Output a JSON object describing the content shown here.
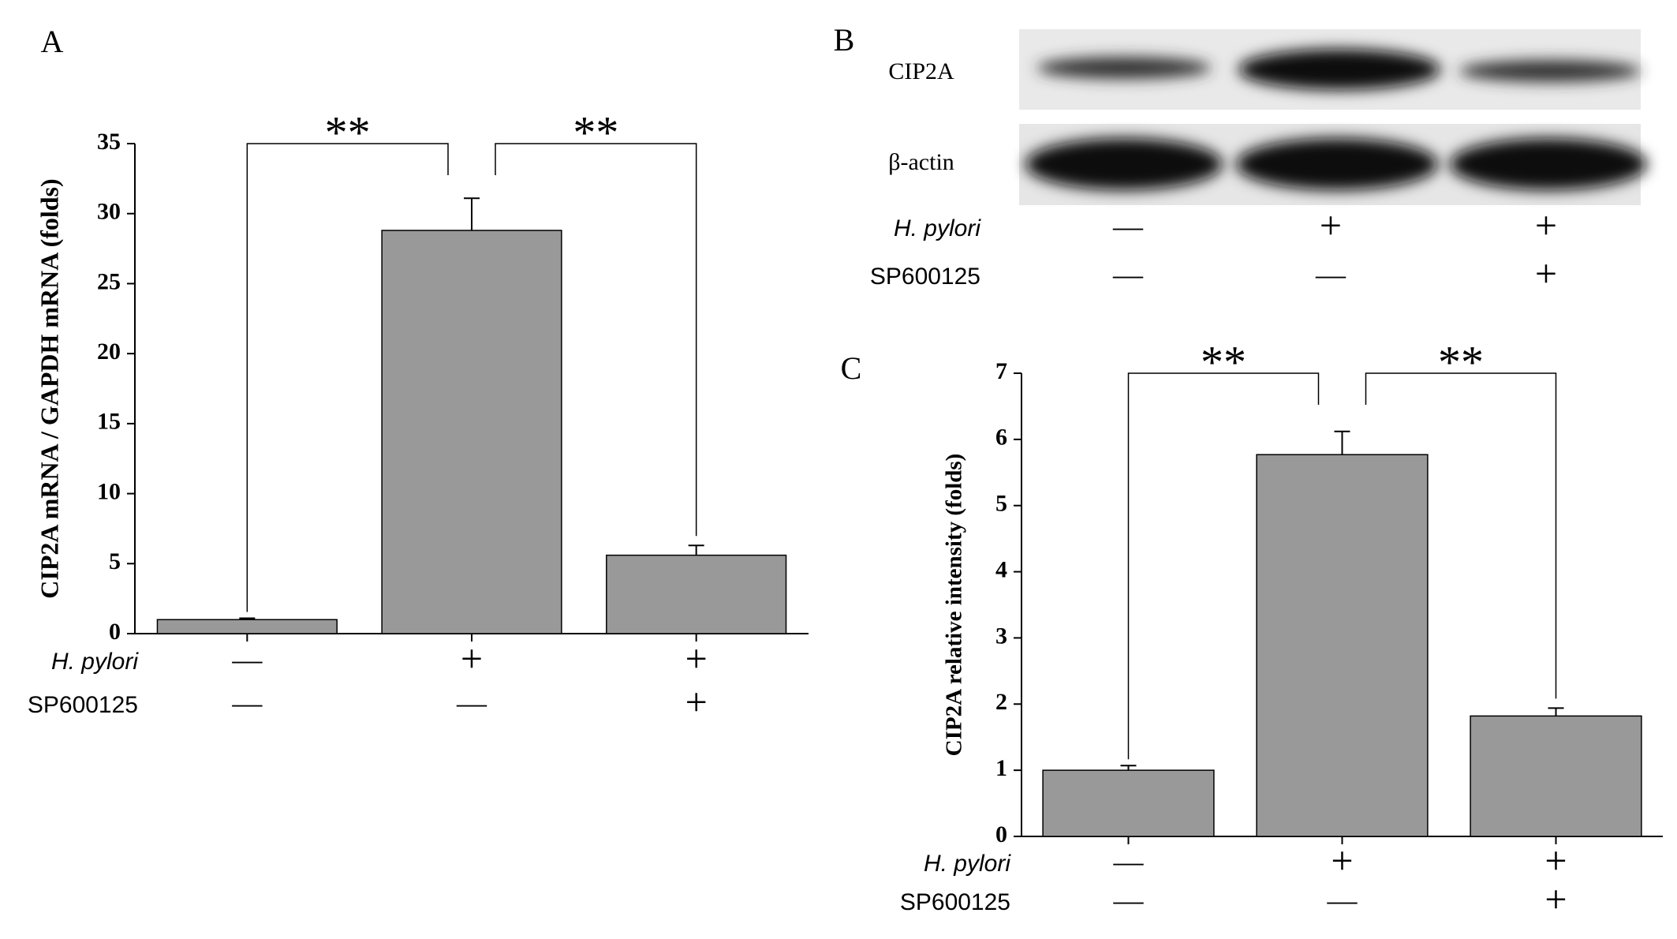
{
  "chart_data": [
    {
      "type": "bar",
      "panel": "A",
      "ylabel": "CIP2A mRNA / GAPDH mRNA (folds)",
      "values": [
        1.0,
        28.8,
        5.6
      ],
      "errors": [
        0.1,
        2.3,
        0.7
      ],
      "color": "#999999",
      "ylim": [
        0,
        35
      ],
      "yticks": [
        0,
        5,
        10,
        15,
        20,
        25,
        30,
        35
      ],
      "significance": [
        "**",
        "**"
      ],
      "conditions": [
        {
          "name": "H. pylori",
          "signs": [
            "—",
            "+",
            "+"
          ]
        },
        {
          "name": "SP600125",
          "signs": [
            "—",
            "—",
            "+"
          ]
        }
      ]
    },
    {
      "type": "bar",
      "panel": "C",
      "ylabel": "CIP2A relative intensity (folds)",
      "values": [
        1.0,
        5.77,
        1.82
      ],
      "errors": [
        0.07,
        0.35,
        0.12
      ],
      "color": "#999999",
      "ylim": [
        0,
        7
      ],
      "yticks": [
        0,
        1,
        2,
        3,
        4,
        5,
        6,
        7
      ],
      "significance": [
        "**",
        "**"
      ],
      "conditions": [
        {
          "name": "H. pylori",
          "signs": [
            "—",
            "+",
            "+"
          ]
        },
        {
          "name": "SP600125",
          "signs": [
            "—",
            "—",
            "+"
          ]
        }
      ]
    }
  ],
  "blot": {
    "panel": "B",
    "rows": [
      "CIP2A",
      "β-actin"
    ],
    "conditions": [
      {
        "name": "H. pylori",
        "signs": [
          "—",
          "+",
          "+"
        ]
      },
      {
        "name": "SP600125",
        "signs": [
          "—",
          "—",
          "+"
        ]
      }
    ]
  }
}
